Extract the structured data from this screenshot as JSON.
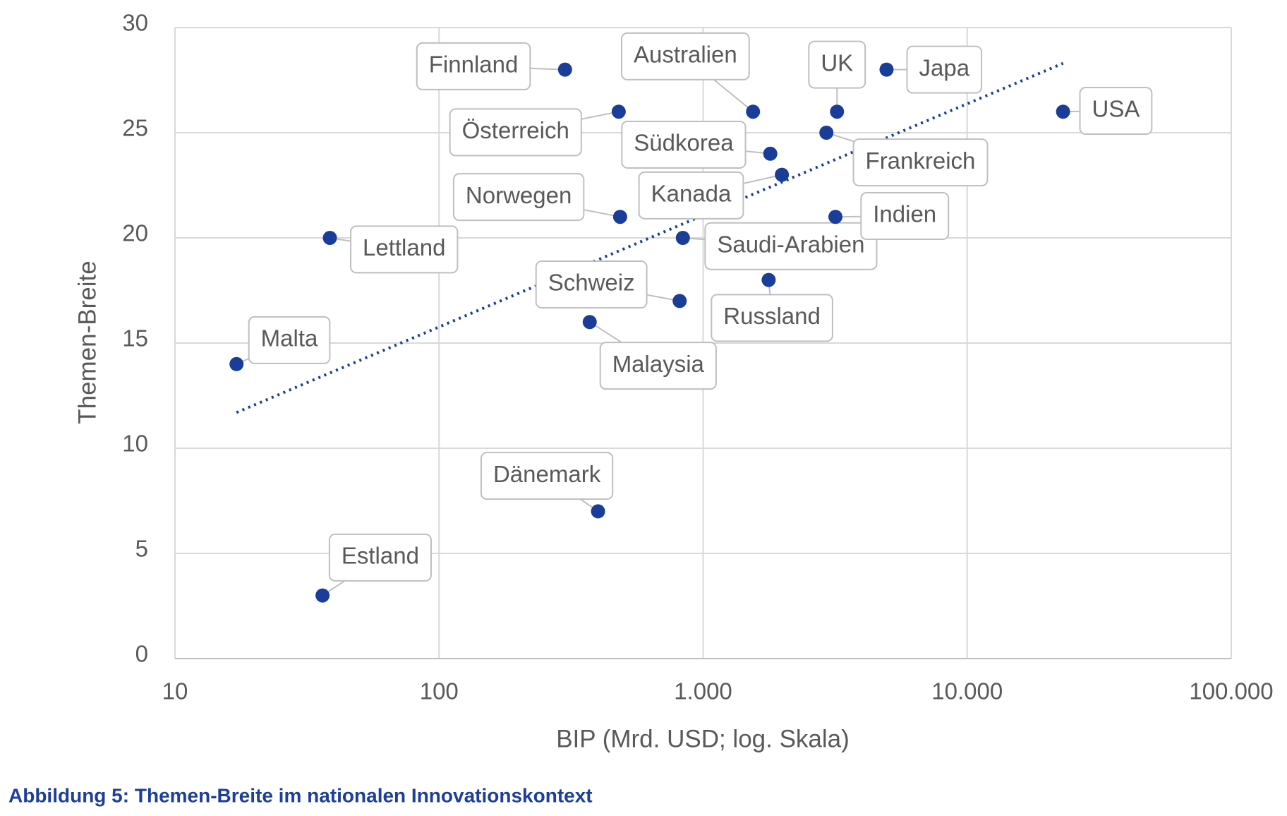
{
  "chart_data": {
    "type": "scatter",
    "caption": "Abbildung 5: Themen-Breite im nationalen Innovationskontext",
    "xlabel": "BIP (Mrd. USD; log. Skala)",
    "ylabel": "Themen-Breite",
    "xscale": "log",
    "xlim": [
      10,
      100000
    ],
    "ylim": [
      0,
      30
    ],
    "xticks": [
      10,
      100,
      {
        "value": 1000,
        "label": "1.000"
      },
      {
        "value": 10000,
        "label": "10.000"
      },
      {
        "value": 100000,
        "label": "100.000"
      }
    ],
    "yticks": [
      0,
      5,
      10,
      15,
      20,
      25,
      30
    ],
    "grid": true,
    "color": "#1a3d9a",
    "labels": [
      "Malta",
      "Estland",
      "Lettland",
      "Finnland",
      "Österreich",
      "Norwegen",
      "Dänemark",
      "Malaysia",
      "Schweiz",
      "Saudi-Arabien",
      "Australien",
      "Südkorea",
      "Kanada",
      "Russland",
      "Frankreich",
      "UK",
      "Indien",
      "Japa",
      "USA"
    ],
    "x": [
      17.1,
      36.2,
      38.6,
      300,
      479,
      485,
      400,
      372,
      815,
      838,
      1545,
      1796,
      1987,
      1771,
      2930,
      3214,
      3170,
      4950,
      23070
    ],
    "values": [
      14,
      3,
      20,
      28,
      26,
      21,
      7,
      16,
      17,
      20,
      26,
      24,
      23,
      18,
      25,
      26,
      21,
      28,
      26
    ],
    "trendline": {
      "x": [
        17.1,
        23070
      ],
      "y": [
        11.7,
        28.3
      ],
      "color": "#1a3d9a",
      "style": "dotted"
    }
  }
}
